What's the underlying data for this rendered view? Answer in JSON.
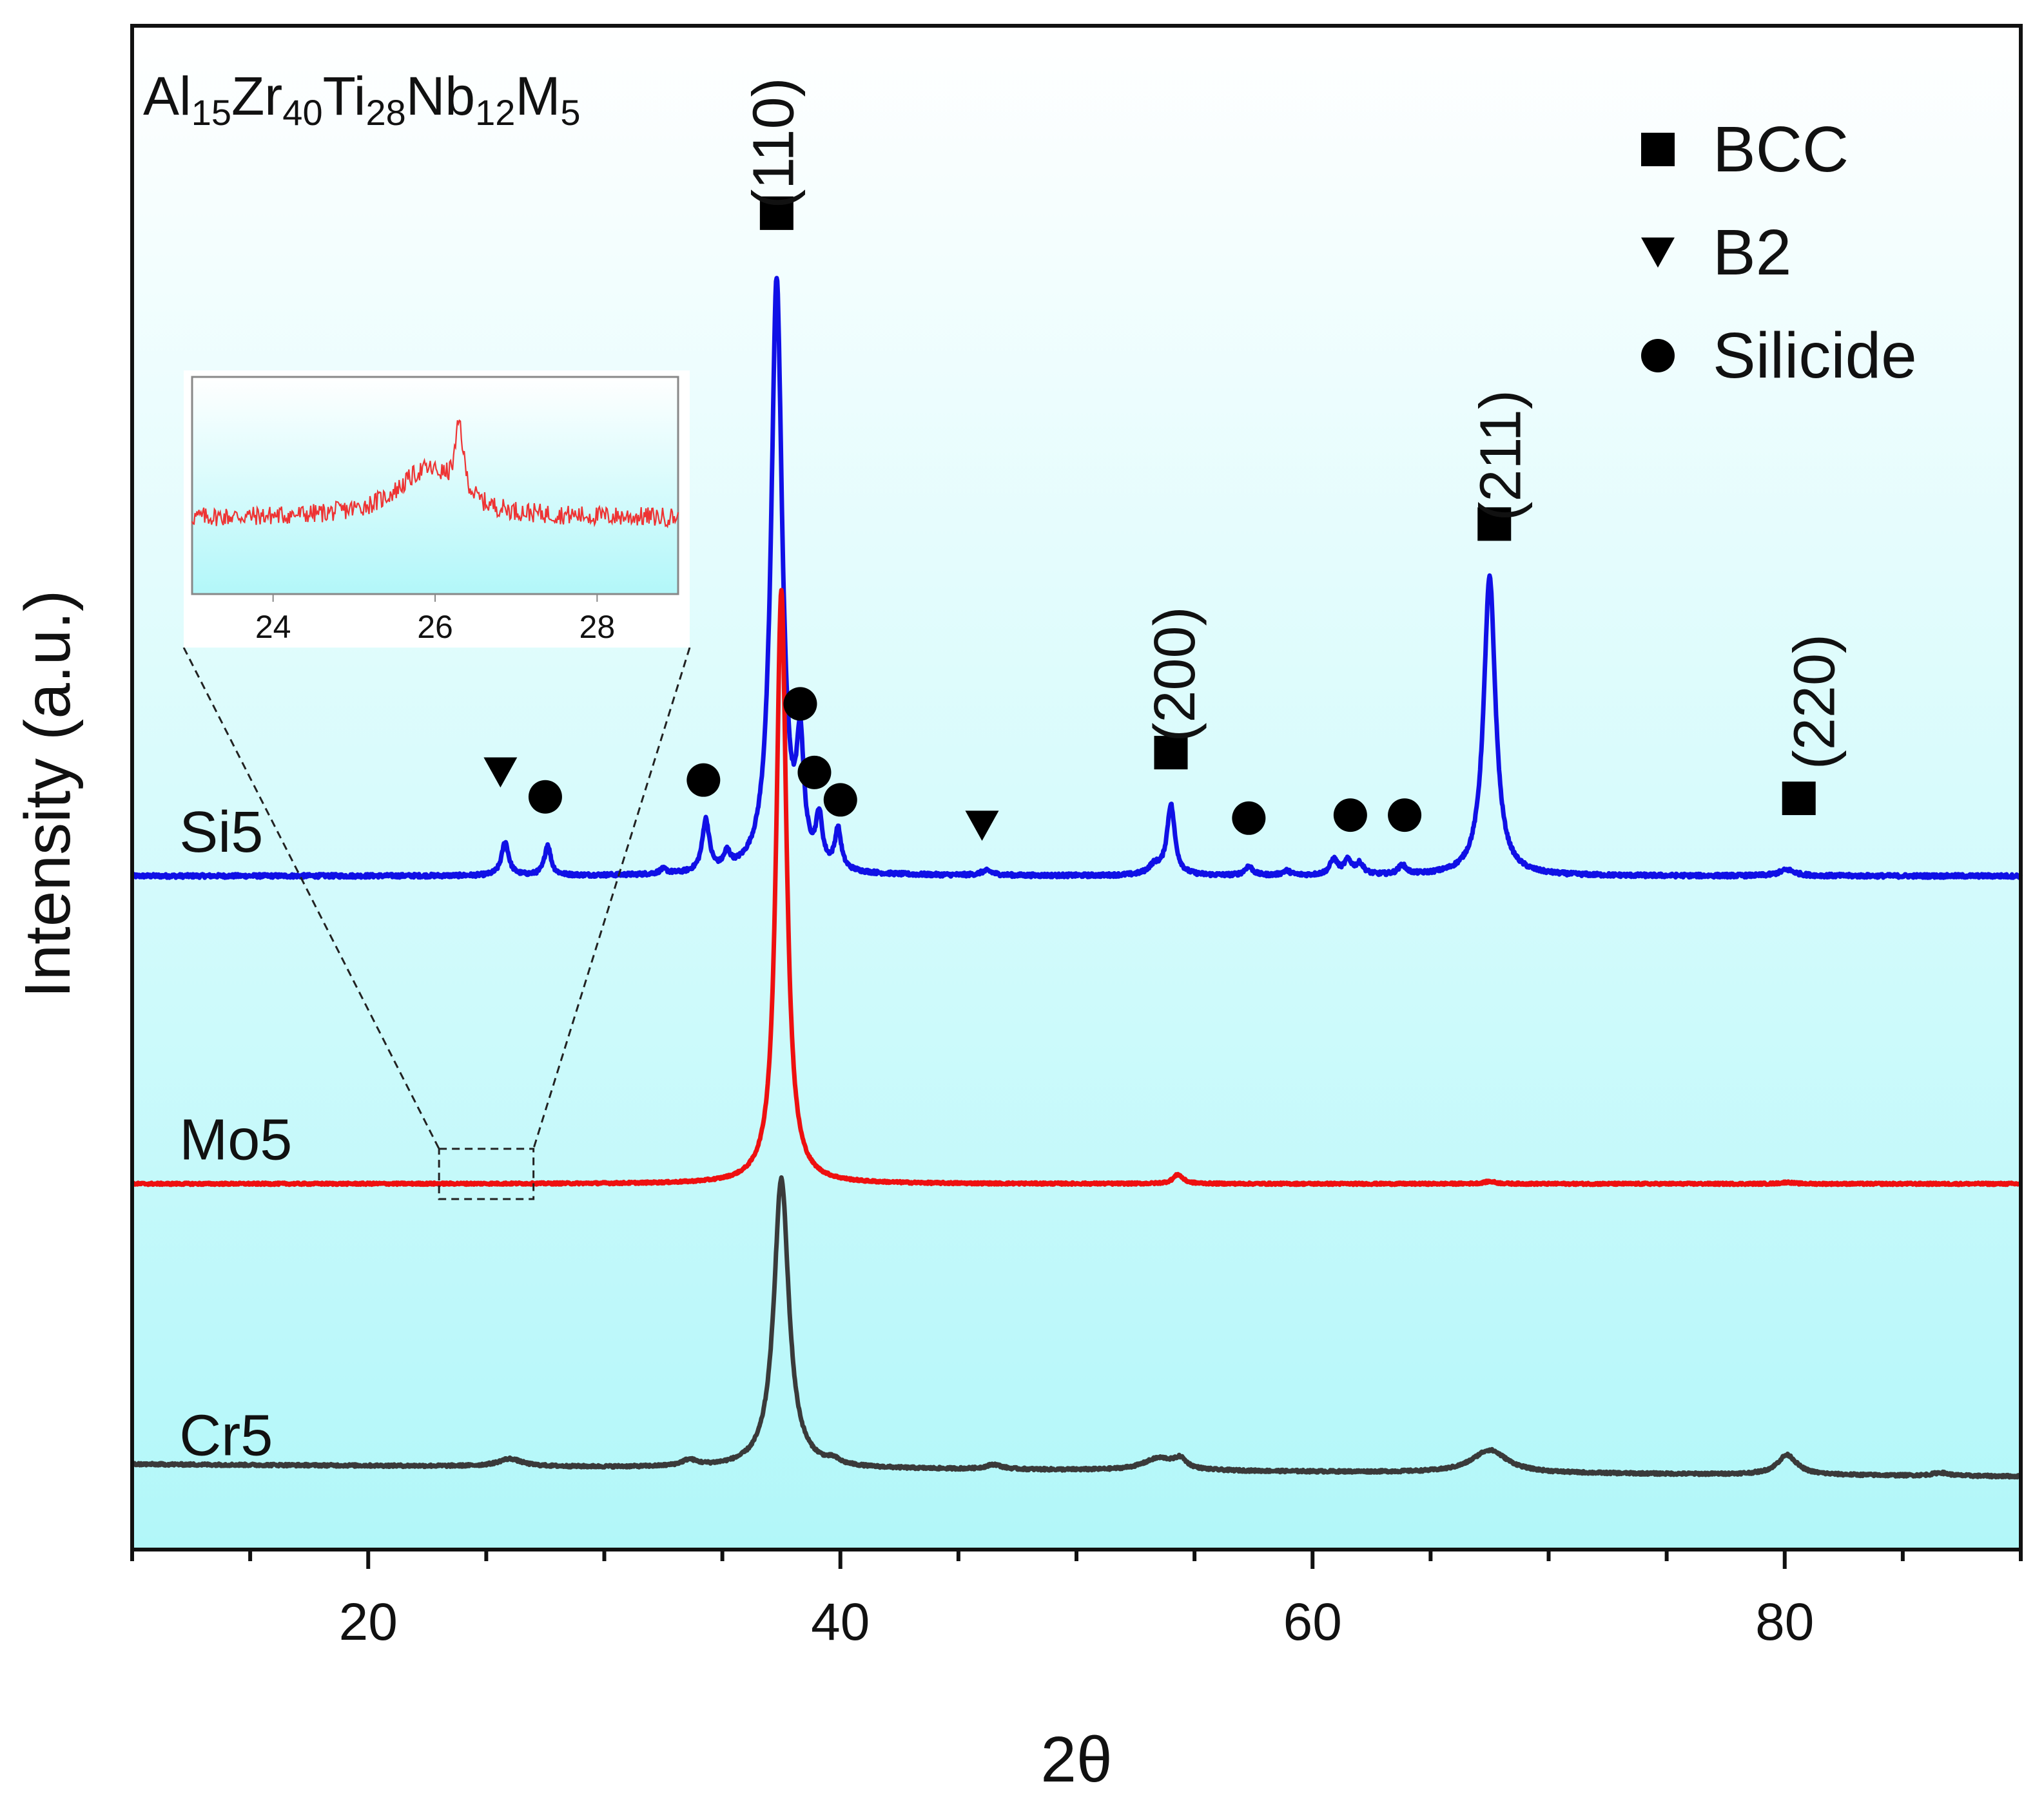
{
  "chart_data": {
    "type": "line",
    "title_parts": [
      {
        "t": "Al",
        "sub": false
      },
      {
        "t": "15",
        "sub": true
      },
      {
        "t": "Zr",
        "sub": false
      },
      {
        "t": "40",
        "sub": true
      },
      {
        "t": "Ti",
        "sub": false
      },
      {
        "t": "28",
        "sub": true
      },
      {
        "t": "Nb",
        "sub": false
      },
      {
        "t": "12",
        "sub": true
      },
      {
        "t": "M",
        "sub": false
      },
      {
        "t": "5",
        "sub": true
      }
    ],
    "xlabel": "2θ",
    "ylabel": "Intensity (a.u.)",
    "xlim": [
      10,
      90
    ],
    "xticks": [
      20,
      40,
      60,
      80
    ],
    "ylim": [
      0,
      100
    ],
    "background_gradient": [
      "#ffffff",
      "#b2f7f9"
    ],
    "series": [
      {
        "name": "Si5",
        "color": "#1010e6",
        "baseline": 44.2,
        "noise": 0.12,
        "peaks": [
          {
            "x": 25.8,
            "h": 2.2,
            "w": 0.18
          },
          {
            "x": 27.6,
            "h": 2.0,
            "w": 0.16
          },
          {
            "x": 32.5,
            "h": 0.3,
            "w": 0.2
          },
          {
            "x": 34.3,
            "h": 3.4,
            "w": 0.18
          },
          {
            "x": 35.2,
            "h": 1.0,
            "w": 0.16
          },
          {
            "x": 37.3,
            "h": 39.0,
            "w": 0.28
          },
          {
            "x": 38.3,
            "h": 7.5,
            "w": 0.18
          },
          {
            "x": 39.1,
            "h": 3.1,
            "w": 0.16
          },
          {
            "x": 39.9,
            "h": 2.6,
            "w": 0.16
          },
          {
            "x": 46.2,
            "h": 0.3,
            "w": 0.3
          },
          {
            "x": 53.3,
            "h": 0.6,
            "w": 0.3
          },
          {
            "x": 54.0,
            "h": 4.6,
            "w": 0.2
          },
          {
            "x": 57.3,
            "h": 0.6,
            "w": 0.2
          },
          {
            "x": 58.9,
            "h": 0.3,
            "w": 0.2
          },
          {
            "x": 60.9,
            "h": 1.0,
            "w": 0.2
          },
          {
            "x": 61.5,
            "h": 0.9,
            "w": 0.2
          },
          {
            "x": 62.0,
            "h": 0.7,
            "w": 0.2
          },
          {
            "x": 63.8,
            "h": 0.6,
            "w": 0.2
          },
          {
            "x": 67.5,
            "h": 19.6,
            "w": 0.3
          },
          {
            "x": 80.1,
            "h": 0.4,
            "w": 0.4
          }
        ]
      },
      {
        "name": "Mo5",
        "color": "#ee1010",
        "baseline": 24.0,
        "noise": 0.07,
        "peaks": [
          {
            "x": 37.5,
            "h": 39.0,
            "w": 0.26
          },
          {
            "x": 54.3,
            "h": 0.6,
            "w": 0.25
          },
          {
            "x": 67.5,
            "h": 0.15,
            "w": 0.3
          },
          {
            "x": 80.1,
            "h": 0.1,
            "w": 0.3
          }
        ]
      },
      {
        "name": "Cr5",
        "color": "#3a3a3a",
        "baseline_start": 5.6,
        "baseline_end": 4.8,
        "noise": 0.08,
        "peaks": [
          {
            "x": 26.0,
            "h": 0.5,
            "w": 0.6
          },
          {
            "x": 33.6,
            "h": 0.4,
            "w": 0.4
          },
          {
            "x": 37.5,
            "h": 19.0,
            "w": 0.38
          },
          {
            "x": 39.7,
            "h": 0.3,
            "w": 0.3
          },
          {
            "x": 46.5,
            "h": 0.3,
            "w": 0.4
          },
          {
            "x": 53.5,
            "h": 0.8,
            "w": 0.8
          },
          {
            "x": 54.4,
            "h": 0.6,
            "w": 0.3
          },
          {
            "x": 67.5,
            "h": 1.5,
            "w": 0.9
          },
          {
            "x": 80.1,
            "h": 1.3,
            "w": 0.5
          },
          {
            "x": 86.6,
            "h": 0.2,
            "w": 0.4
          }
        ]
      }
    ],
    "series_labels": [
      {
        "text": "Si5",
        "x": 12.0,
        "y": 45.8
      },
      {
        "text": "Mo5",
        "x": 12.0,
        "y": 25.6
      },
      {
        "text": "Cr5",
        "x": 12.0,
        "y": 6.2
      }
    ],
    "markers": [
      {
        "shape": "square",
        "x": 37.3,
        "y": 87.7
      },
      {
        "shape": "square",
        "x": 54.0,
        "y": 52.3
      },
      {
        "shape": "square",
        "x": 67.7,
        "y": 67.3
      },
      {
        "shape": "square",
        "x": 80.6,
        "y": 49.3
      },
      {
        "shape": "triangle",
        "x": 25.6,
        "y": 51.0
      },
      {
        "shape": "triangle",
        "x": 46.0,
        "y": 47.5
      },
      {
        "shape": "circle",
        "x": 27.5,
        "y": 49.4
      },
      {
        "shape": "circle",
        "x": 34.2,
        "y": 50.5
      },
      {
        "shape": "circle",
        "x": 38.3,
        "y": 55.5
      },
      {
        "shape": "circle",
        "x": 38.9,
        "y": 51.0
      },
      {
        "shape": "circle",
        "x": 40.0,
        "y": 49.2
      },
      {
        "shape": "circle",
        "x": 57.3,
        "y": 48.0
      },
      {
        "shape": "circle",
        "x": 61.6,
        "y": 48.2
      },
      {
        "shape": "circle",
        "x": 63.9,
        "y": 48.2
      }
    ],
    "peak_labels": [
      {
        "text": "(110)",
        "x": 38.0,
        "y": 88.0
      },
      {
        "text": "(200)",
        "x": 55.0,
        "y": 53.0
      },
      {
        "text": "(211)",
        "x": 68.8,
        "y": 67.5
      },
      {
        "text": "(220)",
        "x": 82.1,
        "y": 51.2
      }
    ],
    "legend": {
      "position": "top-right",
      "items": [
        {
          "shape": "square",
          "label": "BCC"
        },
        {
          "shape": "triangle",
          "label": "B2"
        },
        {
          "shape": "circle",
          "label": "Silicide"
        }
      ]
    },
    "inset": {
      "position": "upper-left",
      "xlim": [
        23,
        29
      ],
      "xticks": [
        24,
        26,
        28
      ],
      "color": "#ee3333",
      "source_series": "Mo5",
      "zoom_box_x": [
        23.0,
        27.0
      ],
      "zoom_box_y": [
        23.0,
        26.3
      ],
      "baseline": 0.35,
      "noise": 0.045,
      "peaks": [
        {
          "x": 25.9,
          "h": 0.22,
          "w": 0.45
        },
        {
          "x": 26.3,
          "h": 0.32,
          "w": 0.06
        }
      ]
    }
  }
}
